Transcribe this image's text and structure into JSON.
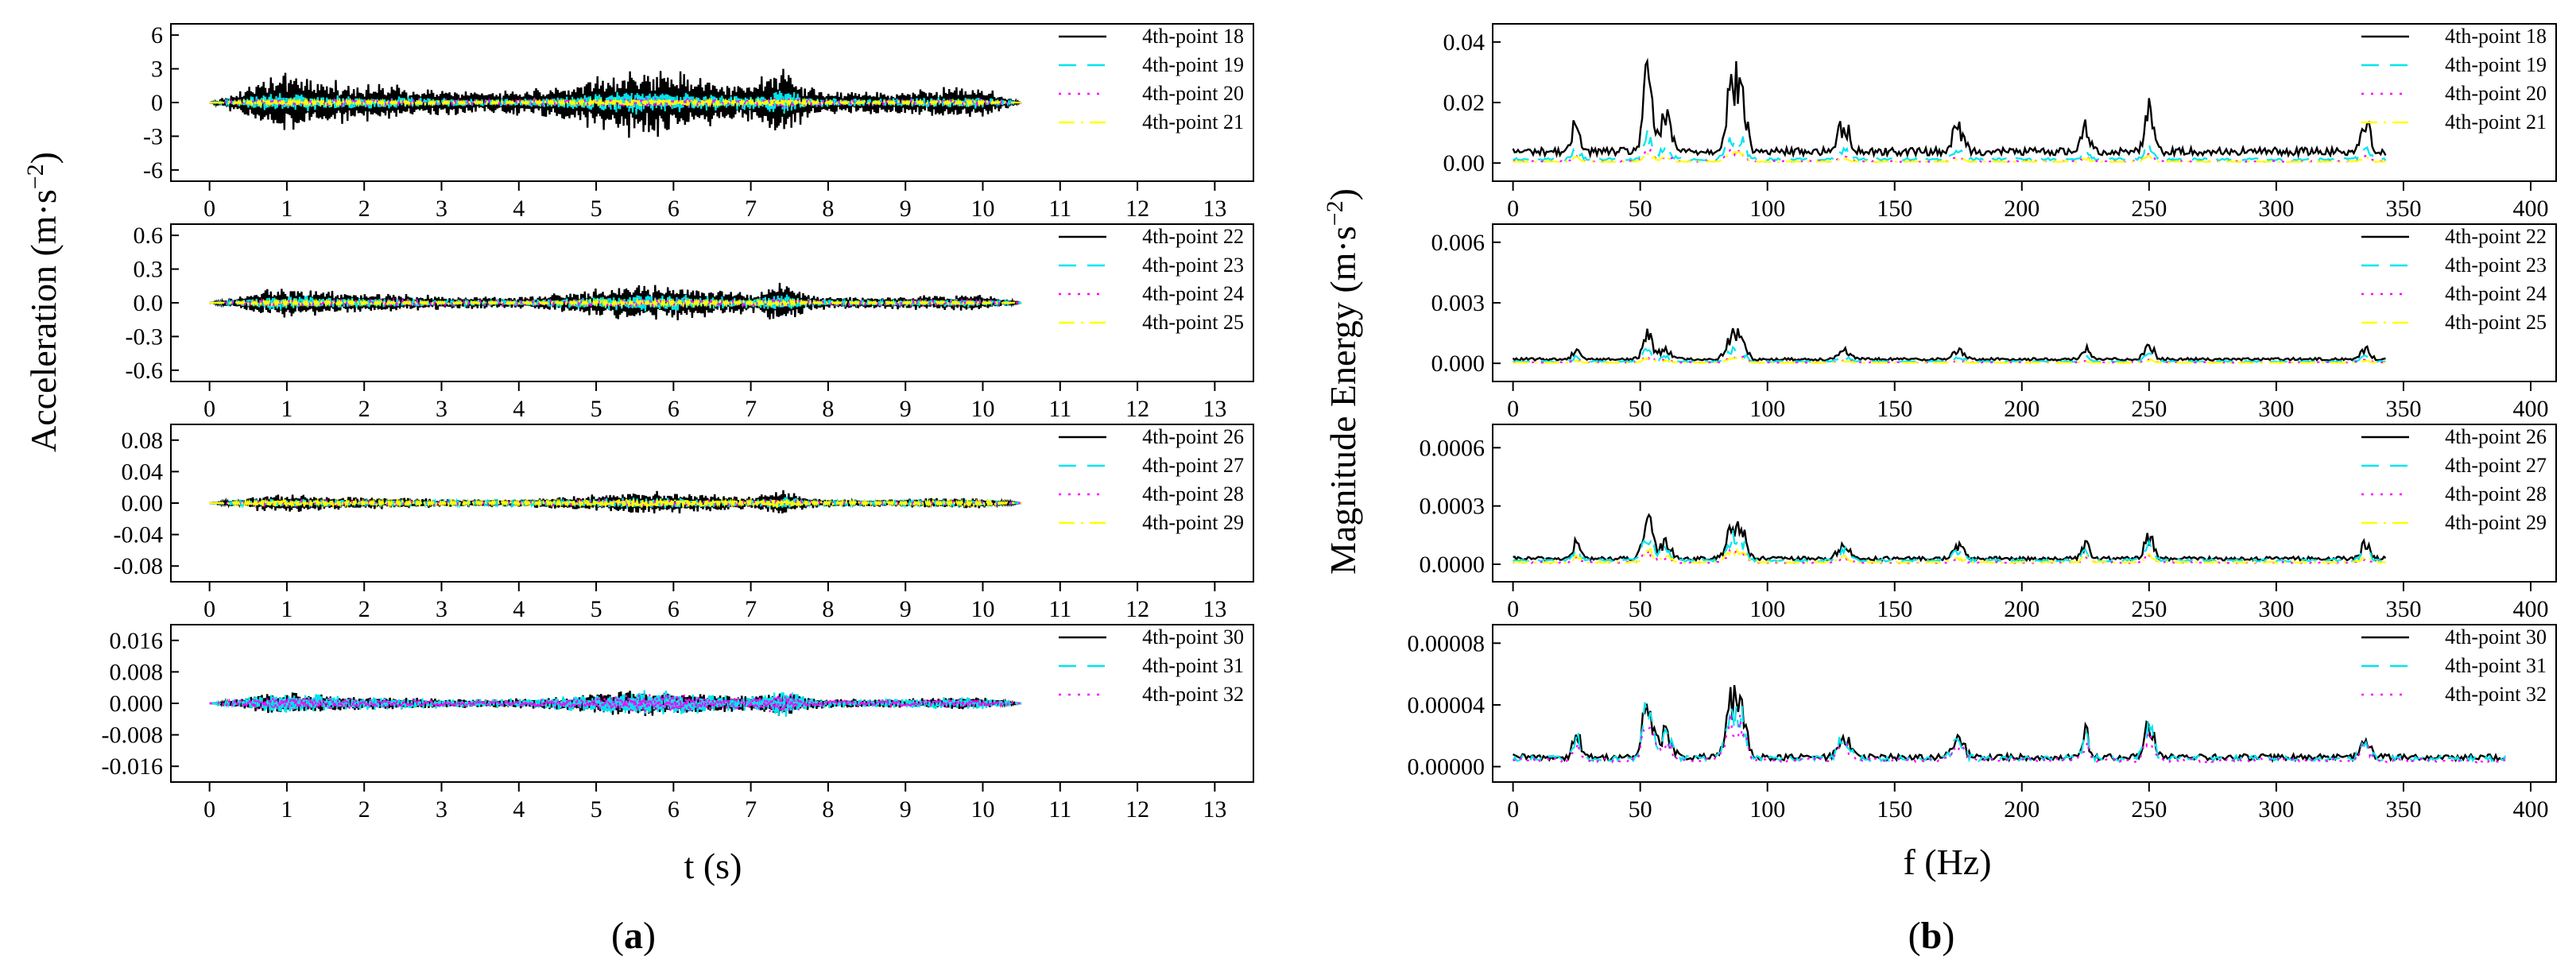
{
  "figure": {
    "a_label": {
      "open": "(",
      "letter": "a",
      "close": ")"
    },
    "b_label": {
      "open": "(",
      "letter": "b",
      "close": ")"
    },
    "a_ylabel": {
      "main": "Acceleration (m·s",
      "sup": "−2",
      "close": ")"
    },
    "b_ylabel": {
      "main": "Magnitude Energy (m·s",
      "sup": "−2",
      "close": ")"
    },
    "a_xlabel": "t (s)",
    "b_xlabel": "f (Hz)"
  },
  "series_styles": {
    "black": {
      "color": "#000000",
      "dash": "none"
    },
    "cyan": {
      "color": "#00e5ee",
      "dash": "22 14"
    },
    "magenta": {
      "color": "#ff00ff",
      "dash": "3 9"
    },
    "yellow": {
      "color": "#ffff00",
      "dash": "20 8 3 8"
    }
  },
  "chart_data": [
    {
      "type": "line",
      "panel": "a",
      "row": 0,
      "xlabel": "t (s)",
      "ylabel": "Acceleration (m·s−2)",
      "xlim": [
        -0.5,
        13.5
      ],
      "ylim": [
        -7,
        7
      ],
      "xticks": [
        0,
        1,
        2,
        3,
        4,
        5,
        6,
        7,
        8,
        9,
        10,
        11,
        12,
        13
      ],
      "yticks": [
        6,
        3,
        0,
        -3,
        -6
      ],
      "ytick_labels": [
        "6",
        "3",
        "0",
        "-3",
        "-6"
      ],
      "x_range": [
        0,
        10.5
      ],
      "legend_position": "top-right",
      "series": [
        {
          "name": "4th-point 18",
          "style": "black",
          "peak": 3.8
        },
        {
          "name": "4th-point 19",
          "style": "cyan",
          "peak": 1.3
        },
        {
          "name": "4th-point 20",
          "style": "magenta",
          "peak": 0.6
        },
        {
          "name": "4th-point 21",
          "style": "yellow",
          "peak": 0.4
        }
      ]
    },
    {
      "type": "line",
      "panel": "a",
      "row": 1,
      "xlabel": "t (s)",
      "ylabel": "Acceleration (m·s−2)",
      "xlim": [
        -0.5,
        13.5
      ],
      "ylim": [
        -0.7,
        0.7
      ],
      "xticks": [
        0,
        1,
        2,
        3,
        4,
        5,
        6,
        7,
        8,
        9,
        10,
        11,
        12,
        13
      ],
      "yticks": [
        0.6,
        0.3,
        0.0,
        -0.3,
        -0.6
      ],
      "ytick_labels": [
        "0.6",
        "0.3",
        "0.0",
        "-0.3",
        "-0.6"
      ],
      "x_range": [
        0,
        10.5
      ],
      "legend_position": "top-right",
      "series": [
        {
          "name": "4th-point 22",
          "style": "black",
          "peak": 0.2
        },
        {
          "name": "4th-point 23",
          "style": "cyan",
          "peak": 0.1
        },
        {
          "name": "4th-point 24",
          "style": "magenta",
          "peak": 0.05
        },
        {
          "name": "4th-point 25",
          "style": "yellow",
          "peak": 0.03
        }
      ]
    },
    {
      "type": "line",
      "panel": "a",
      "row": 2,
      "xlabel": "t (s)",
      "ylabel": "Acceleration (m·s−2)",
      "xlim": [
        -0.5,
        13.5
      ],
      "ylim": [
        -0.1,
        0.1
      ],
      "xticks": [
        0,
        1,
        2,
        3,
        4,
        5,
        6,
        7,
        8,
        9,
        10,
        11,
        12,
        13
      ],
      "yticks": [
        0.08,
        0.04,
        0.0,
        -0.04,
        -0.08
      ],
      "ytick_labels": [
        "0.08",
        "0.04",
        "0.00",
        "-0.04",
        "-0.08"
      ],
      "x_range": [
        0,
        10.5
      ],
      "legend_position": "top-right",
      "series": [
        {
          "name": "4th-point 26",
          "style": "black",
          "peak": 0.018
        },
        {
          "name": "4th-point 27",
          "style": "cyan",
          "peak": 0.009
        },
        {
          "name": "4th-point 28",
          "style": "magenta",
          "peak": 0.005
        },
        {
          "name": "4th-point 29",
          "style": "yellow",
          "peak": 0.007
        }
      ]
    },
    {
      "type": "line",
      "panel": "a",
      "row": 3,
      "xlabel": "t (s)",
      "ylabel": "Acceleration (m·s−2)",
      "xlim": [
        -0.5,
        13.5
      ],
      "ylim": [
        -0.02,
        0.02
      ],
      "xticks": [
        0,
        1,
        2,
        3,
        4,
        5,
        6,
        7,
        8,
        9,
        10,
        11,
        12,
        13
      ],
      "yticks": [
        0.016,
        0.008,
        0.0,
        -0.008,
        -0.016
      ],
      "ytick_labels": [
        "0.016",
        "0.008",
        "0.000",
        "-0.008",
        "-0.016"
      ],
      "x_range": [
        0,
        10.5
      ],
      "legend_position": "top-right",
      "series": [
        {
          "name": "4th-point 30",
          "style": "black",
          "peak": 0.004
        },
        {
          "name": "4th-point 31",
          "style": "cyan",
          "peak": 0.004
        },
        {
          "name": "4th-point 32",
          "style": "magenta",
          "peak": 0.003
        }
      ]
    },
    {
      "type": "line",
      "panel": "b",
      "row": 0,
      "xlabel": "f (Hz)",
      "ylabel": "Magnitude Energy (m·s−2)",
      "xlim": [
        -8,
        410
      ],
      "ylim": [
        -0.006,
        0.046
      ],
      "xticks": [
        0,
        50,
        100,
        150,
        200,
        250,
        300,
        350,
        400
      ],
      "yticks": [
        0.04,
        0.02,
        0.0
      ],
      "ytick_labels": [
        "0.04",
        "0.02",
        "0.00"
      ],
      "x_range": [
        0,
        343
      ],
      "legend_position": "top-right",
      "series": [
        {
          "name": "4th-point 18",
          "style": "black",
          "peak": 0.034
        },
        {
          "name": "4th-point 19",
          "style": "cyan",
          "peak": 0.011
        },
        {
          "name": "4th-point 20",
          "style": "magenta",
          "peak": 0.005
        },
        {
          "name": "4th-point 21",
          "style": "yellow",
          "peak": 0.004
        }
      ]
    },
    {
      "type": "line",
      "panel": "b",
      "row": 1,
      "xlabel": "f (Hz)",
      "ylabel": "Magnitude Energy (m·s−2)",
      "xlim": [
        -8,
        410
      ],
      "ylim": [
        -0.0009,
        0.0069
      ],
      "xticks": [
        0,
        50,
        100,
        150,
        200,
        250,
        300,
        350,
        400
      ],
      "yticks": [
        0.006,
        0.003,
        0.0
      ],
      "ytick_labels": [
        "0.006",
        "0.003",
        "0.000"
      ],
      "x_range": [
        0,
        343
      ],
      "legend_position": "top-right",
      "series": [
        {
          "name": "4th-point 22",
          "style": "black",
          "peak": 0.0018
        },
        {
          "name": "4th-point 23",
          "style": "cyan",
          "peak": 0.0008
        },
        {
          "name": "4th-point 24",
          "style": "magenta",
          "peak": 0.0004
        },
        {
          "name": "4th-point 25",
          "style": "yellow",
          "peak": 0.0003
        }
      ]
    },
    {
      "type": "line",
      "panel": "b",
      "row": 2,
      "xlabel": "f (Hz)",
      "ylabel": "Magnitude Energy (m·s−2)",
      "xlim": [
        -8,
        410
      ],
      "ylim": [
        -9e-05,
        0.00072
      ],
      "xticks": [
        0,
        50,
        100,
        150,
        200,
        250,
        300,
        350,
        400
      ],
      "yticks": [
        0.0006,
        0.0003,
        0.0
      ],
      "ytick_labels": [
        "0.0006",
        "0.0003",
        "0.0000"
      ],
      "x_range": [
        0,
        343
      ],
      "legend_position": "top-right",
      "series": [
        {
          "name": "4th-point 26",
          "style": "black",
          "peak": 0.00026
        },
        {
          "name": "4th-point 27",
          "style": "cyan",
          "peak": 0.00018
        },
        {
          "name": "4th-point 28",
          "style": "magenta",
          "peak": 8e-05
        },
        {
          "name": "4th-point 29",
          "style": "yellow",
          "peak": 9e-05
        }
      ]
    },
    {
      "type": "line",
      "panel": "b",
      "row": 3,
      "xlabel": "f (Hz)",
      "ylabel": "Magnitude Energy (m·s−2)",
      "xlim": [
        -8,
        410
      ],
      "ylim": [
        -1e-05,
        9.2e-05
      ],
      "xticks": [
        0,
        50,
        100,
        150,
        200,
        250,
        300,
        350,
        400
      ],
      "yticks": [
        8e-05,
        4e-05,
        0.0
      ],
      "ytick_labels": [
        "0.00008",
        "0.00004",
        "0.00000"
      ],
      "x_range": [
        0,
        390
      ],
      "legend_position": "top-right",
      "series": [
        {
          "name": "4th-point 30",
          "style": "black",
          "peak": 5.4e-05
        },
        {
          "name": "4th-point 31",
          "style": "cyan",
          "peak": 4.8e-05
        },
        {
          "name": "4th-point 32",
          "style": "magenta",
          "peak": 3.6e-05
        }
      ]
    }
  ]
}
